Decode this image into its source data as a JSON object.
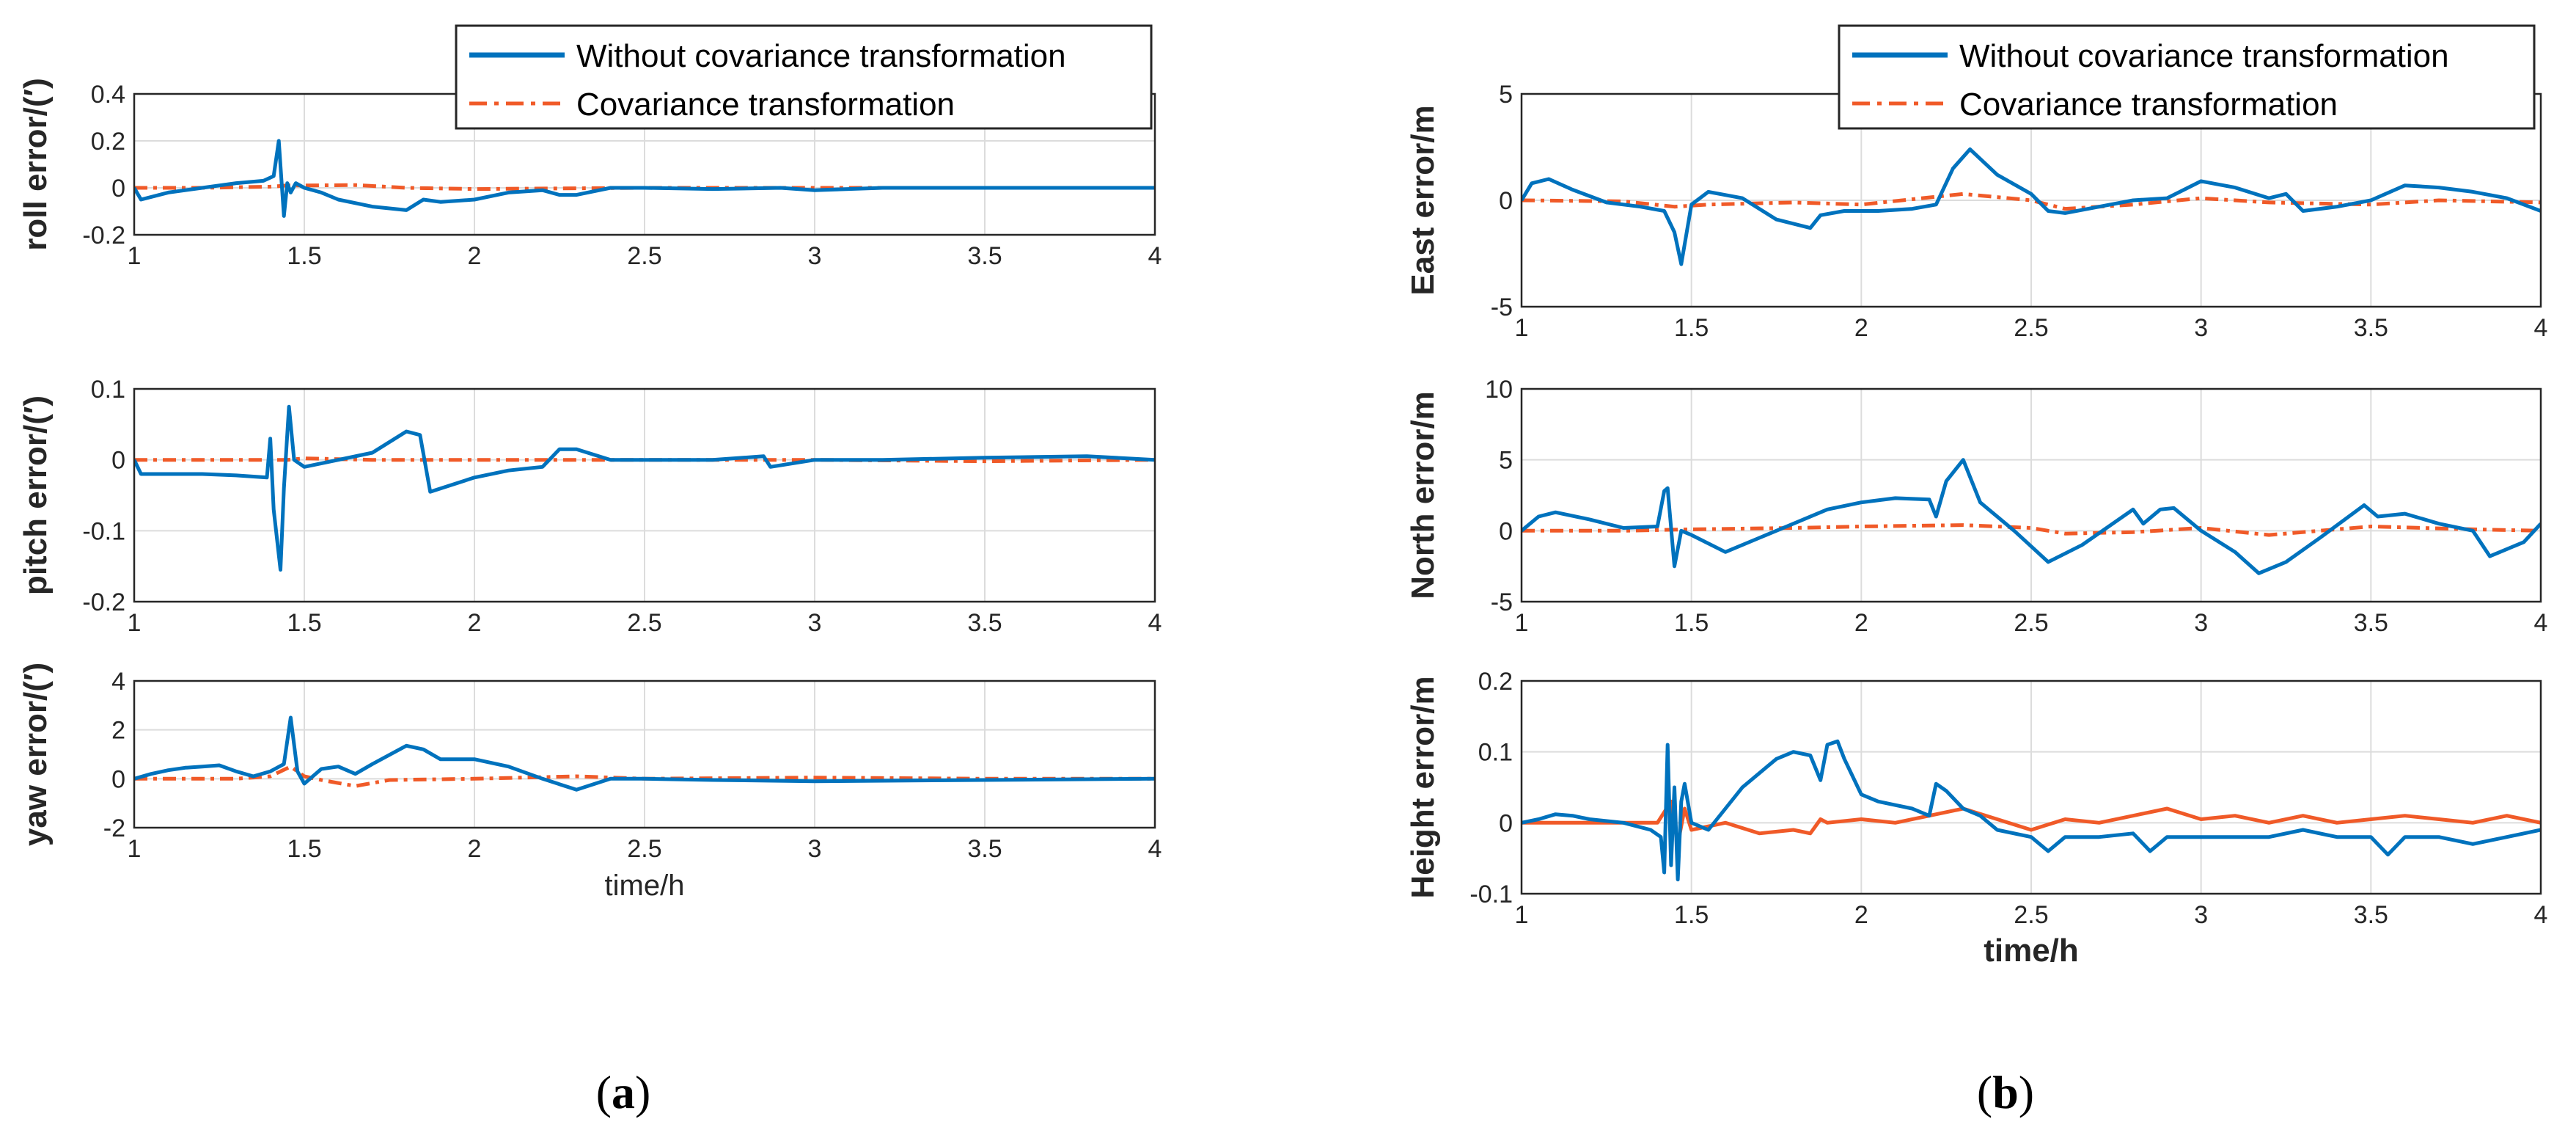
{
  "figure": {
    "colors": {
      "without": "#0072BD",
      "with": "#F05A28",
      "grid": "#DCDCDC",
      "axis": "#262626"
    },
    "captions": {
      "a": "(a)",
      "b": "(b)"
    },
    "caption_bold": {
      "a": "a",
      "b": "b"
    }
  },
  "legend": {
    "without_label": "Without covariance transformation",
    "with_label": "Covariance transformation"
  },
  "chart_data": [
    {
      "id": "roll",
      "type": "line",
      "ylabel": "roll error/(′)",
      "xlabel": "",
      "xlim": [
        1,
        4
      ],
      "ylim": [
        -0.2,
        0.4
      ],
      "xticks": [
        "1",
        "1.5",
        "2",
        "2.5",
        "3",
        "3.5",
        "4"
      ],
      "yticks": [
        "-0.2",
        "0",
        "0.2",
        "0.4"
      ],
      "series": [
        {
          "name": "Without covariance transformation",
          "x": [
            1,
            1.02,
            1.1,
            1.2,
            1.3,
            1.38,
            1.41,
            1.425,
            1.44,
            1.45,
            1.46,
            1.475,
            1.5,
            1.55,
            1.6,
            1.7,
            1.8,
            1.85,
            1.9,
            2.0,
            2.1,
            2.2,
            2.25,
            2.3,
            2.4,
            2.5,
            2.7,
            2.9,
            3.0,
            3.2,
            3.5,
            3.8,
            4.0
          ],
          "y": [
            0,
            -0.05,
            -0.02,
            0.0,
            0.02,
            0.03,
            0.05,
            0.2,
            -0.12,
            0.02,
            -0.02,
            0.02,
            0.0,
            -0.02,
            -0.05,
            -0.08,
            -0.095,
            -0.05,
            -0.06,
            -0.05,
            -0.02,
            -0.01,
            -0.03,
            -0.03,
            0.0,
            0.0,
            -0.005,
            0.0,
            -0.01,
            0.0,
            0.0,
            0.0,
            0.0
          ]
        },
        {
          "name": "Covariance transformation",
          "x": [
            1,
            1.2,
            1.4,
            1.45,
            1.5,
            1.65,
            1.8,
            2.0,
            2.5,
            3.0,
            3.5,
            4.0
          ],
          "y": [
            0,
            0.0,
            0.005,
            0.01,
            0.01,
            0.012,
            0.0,
            -0.005,
            0.0,
            0.0,
            0.0,
            0.0
          ]
        }
      ]
    },
    {
      "id": "pitch",
      "type": "line",
      "ylabel": "pitch error/(′)",
      "xlabel": "",
      "xlim": [
        1,
        4
      ],
      "ylim": [
        -0.2,
        0.1
      ],
      "xticks": [
        "1",
        "1.5",
        "2",
        "2.5",
        "3",
        "3.5",
        "4"
      ],
      "yticks": [
        "-0.2",
        "-0.1",
        "0",
        "0.1"
      ],
      "series": [
        {
          "name": "Without covariance transformation",
          "x": [
            1,
            1.02,
            1.1,
            1.2,
            1.3,
            1.39,
            1.4,
            1.41,
            1.43,
            1.44,
            1.455,
            1.47,
            1.5,
            1.6,
            1.7,
            1.8,
            1.84,
            1.87,
            2.0,
            2.1,
            2.2,
            2.25,
            2.3,
            2.4,
            2.5,
            2.7,
            2.85,
            2.87,
            3.0,
            3.2,
            3.5,
            3.8,
            4.0
          ],
          "y": [
            0,
            -0.02,
            -0.02,
            -0.02,
            -0.022,
            -0.025,
            0.03,
            -0.07,
            -0.155,
            -0.04,
            0.075,
            0.0,
            -0.01,
            0.0,
            0.01,
            0.04,
            0.035,
            -0.045,
            -0.025,
            -0.015,
            -0.01,
            0.015,
            0.015,
            0.0,
            0.0,
            0.0,
            0.005,
            -0.01,
            0.0,
            0.0,
            0.003,
            0.005,
            0.0
          ]
        },
        {
          "name": "Covariance transformation",
          "x": [
            1,
            1.3,
            1.45,
            1.5,
            1.7,
            2.0,
            2.5,
            3.0,
            3.5,
            4.0
          ],
          "y": [
            0,
            0.0,
            0.0,
            0.002,
            0.0,
            0.0,
            0.0,
            0.0,
            -0.002,
            0.0
          ]
        }
      ]
    },
    {
      "id": "yaw",
      "type": "line",
      "ylabel": "yaw error/(′)",
      "xlabel": "time/h",
      "xlim": [
        1,
        4
      ],
      "ylim": [
        -2,
        4
      ],
      "xticks": [
        "1",
        "1.5",
        "2",
        "2.5",
        "3",
        "3.5",
        "4"
      ],
      "yticks": [
        "-2",
        "0",
        "2",
        "4"
      ],
      "series": [
        {
          "name": "Without covariance transformation",
          "x": [
            1,
            1.05,
            1.1,
            1.15,
            1.2,
            1.25,
            1.3,
            1.35,
            1.4,
            1.44,
            1.46,
            1.48,
            1.5,
            1.55,
            1.6,
            1.65,
            1.7,
            1.8,
            1.85,
            1.9,
            2.0,
            2.1,
            2.2,
            2.3,
            2.4,
            2.5,
            2.7,
            3.0,
            3.5,
            4.0
          ],
          "y": [
            0,
            0.2,
            0.35,
            0.45,
            0.5,
            0.55,
            0.3,
            0.1,
            0.3,
            0.6,
            2.5,
            0.3,
            -0.2,
            0.4,
            0.5,
            0.2,
            0.6,
            1.35,
            1.2,
            0.8,
            0.8,
            0.5,
            0.0,
            -0.45,
            0.0,
            0.0,
            -0.05,
            -0.1,
            -0.05,
            0.0
          ]
        },
        {
          "name": "Covariance transformation",
          "x": [
            1,
            1.3,
            1.4,
            1.46,
            1.5,
            1.55,
            1.65,
            1.75,
            2.0,
            2.3,
            2.5,
            3.0,
            3.5,
            4.0
          ],
          "y": [
            0,
            0.0,
            0.1,
            0.5,
            0.1,
            -0.05,
            -0.3,
            -0.05,
            0.0,
            0.1,
            0.0,
            0.05,
            0.0,
            0.0
          ]
        }
      ]
    },
    {
      "id": "east",
      "type": "line",
      "ylabel": "East error/m",
      "xlabel": "",
      "xlim": [
        1,
        4
      ],
      "ylim": [
        -5,
        5
      ],
      "xticks": [
        "1",
        "1.5",
        "2",
        "2.5",
        "3",
        "3.5",
        "4"
      ],
      "yticks": [
        "-5",
        "0",
        "5"
      ],
      "series": [
        {
          "name": "Without covariance transformation",
          "x": [
            1,
            1.03,
            1.08,
            1.15,
            1.25,
            1.35,
            1.42,
            1.45,
            1.47,
            1.5,
            1.55,
            1.65,
            1.75,
            1.85,
            1.88,
            1.95,
            2.05,
            2.15,
            2.22,
            2.27,
            2.32,
            2.4,
            2.5,
            2.55,
            2.6,
            2.7,
            2.8,
            2.9,
            3.0,
            3.1,
            3.2,
            3.25,
            3.3,
            3.4,
            3.5,
            3.6,
            3.7,
            3.8,
            3.9,
            4.0
          ],
          "y": [
            0,
            0.8,
            1.0,
            0.5,
            -0.1,
            -0.3,
            -0.5,
            -1.5,
            -3.0,
            -0.2,
            0.4,
            0.1,
            -0.9,
            -1.3,
            -0.7,
            -0.5,
            -0.5,
            -0.4,
            -0.2,
            1.5,
            2.4,
            1.2,
            0.3,
            -0.5,
            -0.6,
            -0.3,
            0.0,
            0.1,
            0.9,
            0.6,
            0.1,
            0.3,
            -0.5,
            -0.3,
            0.0,
            0.7,
            0.6,
            0.4,
            0.1,
            -0.5
          ]
        },
        {
          "name": "Covariance transformation",
          "x": [
            1,
            1.3,
            1.45,
            1.55,
            1.8,
            2.0,
            2.3,
            2.5,
            2.6,
            2.8,
            3.0,
            3.2,
            3.5,
            3.7,
            4.0
          ],
          "y": [
            0,
            -0.05,
            -0.3,
            -0.2,
            -0.1,
            -0.2,
            0.3,
            0.0,
            -0.4,
            -0.2,
            0.1,
            -0.1,
            -0.2,
            0.0,
            -0.1
          ]
        }
      ]
    },
    {
      "id": "north",
      "type": "line",
      "ylabel": "North error/m",
      "xlabel": "",
      "xlim": [
        1,
        4
      ],
      "ylim": [
        -5,
        10
      ],
      "xticks": [
        "1",
        "1.5",
        "2",
        "2.5",
        "3",
        "3.5",
        "4"
      ],
      "yticks": [
        "-5",
        "0",
        "5",
        "10"
      ],
      "series": [
        {
          "name": "Without covariance transformation",
          "x": [
            1,
            1.05,
            1.1,
            1.2,
            1.3,
            1.4,
            1.42,
            1.43,
            1.45,
            1.47,
            1.5,
            1.6,
            1.7,
            1.8,
            1.9,
            2.0,
            2.1,
            2.2,
            2.22,
            2.25,
            2.3,
            2.35,
            2.45,
            2.55,
            2.65,
            2.8,
            2.83,
            2.88,
            2.92,
            3.0,
            3.1,
            3.17,
            3.25,
            3.35,
            3.48,
            3.52,
            3.6,
            3.7,
            3.8,
            3.85,
            3.95,
            4.0
          ],
          "y": [
            0,
            1.0,
            1.3,
            0.8,
            0.2,
            0.3,
            2.8,
            3.0,
            -2.5,
            0.0,
            -0.3,
            -1.5,
            -0.5,
            0.5,
            1.5,
            2.0,
            2.3,
            2.2,
            1.0,
            3.5,
            5.0,
            2.0,
            0.0,
            -2.2,
            -1.0,
            1.5,
            0.5,
            1.5,
            1.6,
            0.0,
            -1.5,
            -3.0,
            -2.2,
            -0.5,
            1.8,
            1.0,
            1.2,
            0.5,
            0.0,
            -1.8,
            -0.8,
            0.5
          ]
        },
        {
          "name": "Covariance transformation",
          "x": [
            1,
            1.3,
            1.5,
            1.8,
            2.0,
            2.3,
            2.5,
            2.6,
            2.8,
            3.0,
            3.2,
            3.5,
            3.8,
            4.0
          ],
          "y": [
            0,
            0.0,
            0.1,
            0.2,
            0.3,
            0.4,
            0.2,
            -0.2,
            -0.1,
            0.2,
            -0.3,
            0.3,
            0.1,
            0.0
          ]
        }
      ]
    },
    {
      "id": "height",
      "type": "line",
      "ylabel": "Height error/m",
      "xlabel": "time/h",
      "xlim": [
        1,
        4
      ],
      "ylim": [
        -0.1,
        0.2
      ],
      "xticks": [
        "1",
        "1.5",
        "2",
        "2.5",
        "3",
        "3.5",
        "4"
      ],
      "yticks": [
        "-0.1",
        "0",
        "0.1",
        "0.2"
      ],
      "series": [
        {
          "name": "Without covariance transformation",
          "x": [
            1,
            1.05,
            1.1,
            1.15,
            1.2,
            1.3,
            1.38,
            1.41,
            1.42,
            1.43,
            1.44,
            1.45,
            1.46,
            1.47,
            1.48,
            1.5,
            1.55,
            1.6,
            1.65,
            1.7,
            1.75,
            1.8,
            1.85,
            1.88,
            1.9,
            1.93,
            1.95,
            2.0,
            2.05,
            2.1,
            2.15,
            2.2,
            2.22,
            2.25,
            2.3,
            2.35,
            2.4,
            2.5,
            2.55,
            2.6,
            2.7,
            2.8,
            2.85,
            2.9,
            3.0,
            3.1,
            3.2,
            3.3,
            3.4,
            3.5,
            3.55,
            3.6,
            3.7,
            3.8,
            3.9,
            4.0
          ],
          "y": [
            0,
            0.005,
            0.012,
            0.01,
            0.005,
            0.0,
            -0.01,
            -0.02,
            -0.07,
            0.11,
            -0.06,
            0.05,
            -0.08,
            0.03,
            0.055,
            0.0,
            -0.01,
            0.02,
            0.05,
            0.07,
            0.09,
            0.1,
            0.095,
            0.06,
            0.11,
            0.115,
            0.09,
            0.04,
            0.03,
            0.025,
            0.02,
            0.01,
            0.055,
            0.045,
            0.02,
            0.01,
            -0.01,
            -0.02,
            -0.04,
            -0.02,
            -0.02,
            -0.015,
            -0.04,
            -0.02,
            -0.02,
            -0.02,
            -0.02,
            -0.01,
            -0.02,
            -0.02,
            -0.045,
            -0.02,
            -0.02,
            -0.03,
            -0.02,
            -0.01
          ]
        },
        {
          "name": "Covariance transformation",
          "x": [
            1,
            1.2,
            1.4,
            1.44,
            1.46,
            1.48,
            1.5,
            1.6,
            1.7,
            1.8,
            1.85,
            1.88,
            1.9,
            2.0,
            2.1,
            2.2,
            2.3,
            2.4,
            2.5,
            2.6,
            2.7,
            2.8,
            2.9,
            3.0,
            3.1,
            3.2,
            3.3,
            3.4,
            3.5,
            3.6,
            3.7,
            3.8,
            3.9,
            4.0
          ],
          "y": [
            0,
            0.0,
            0.0,
            0.03,
            -0.03,
            0.02,
            -0.01,
            0.0,
            -0.015,
            -0.01,
            -0.015,
            0.005,
            0.0,
            0.005,
            0.0,
            0.01,
            0.02,
            0.005,
            -0.01,
            0.005,
            0.0,
            0.01,
            0.02,
            0.005,
            0.01,
            0.0,
            0.01,
            0.0,
            0.005,
            0.01,
            0.005,
            0.0,
            0.01,
            0.0
          ]
        }
      ]
    }
  ]
}
